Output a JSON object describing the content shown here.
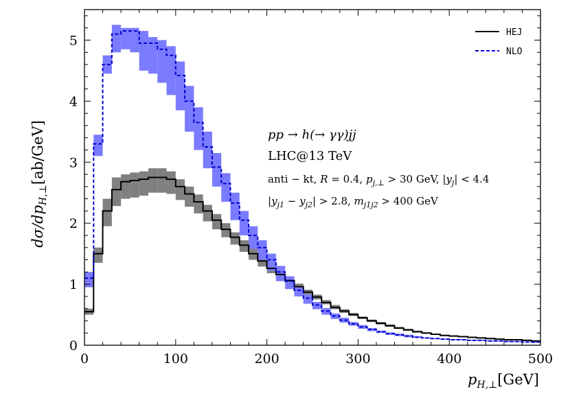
{
  "chart_data": {
    "type": "step",
    "xlabel": "p_{H,⊥}[GeV]",
    "ylabel": "dσ/dp_{H,⊥}[ab/GeV]",
    "xlim": [
      0,
      500
    ],
    "ylim": [
      0,
      5.5
    ],
    "x_ticks": [
      0,
      100,
      200,
      300,
      400,
      500
    ],
    "y_ticks": [
      0,
      1,
      2,
      3,
      4,
      5
    ],
    "x_tick_labels": [
      "0",
      "100",
      "200",
      "300",
      "400",
      "500"
    ],
    "y_tick_labels": [
      "0",
      "1",
      "2",
      "3",
      "4",
      "5"
    ],
    "bin_edges": [
      0,
      10,
      20,
      30,
      40,
      50,
      60,
      70,
      80,
      90,
      100,
      110,
      120,
      130,
      140,
      150,
      160,
      170,
      180,
      190,
      200,
      210,
      220,
      230,
      240,
      250,
      260,
      270,
      280,
      290,
      300,
      310,
      320,
      330,
      340,
      350,
      360,
      370,
      380,
      390,
      400,
      410,
      420,
      430,
      440,
      450,
      460,
      470,
      480,
      490,
      500
    ],
    "series": [
      {
        "name": "HEJ",
        "color": "#000000",
        "band_color": "#808080",
        "linestyle": "solid",
        "values": [
          0.55,
          1.5,
          2.2,
          2.55,
          2.68,
          2.7,
          2.72,
          2.75,
          2.75,
          2.72,
          2.6,
          2.48,
          2.35,
          2.2,
          2.05,
          1.9,
          1.77,
          1.64,
          1.5,
          1.38,
          1.26,
          1.16,
          1.06,
          0.96,
          0.87,
          0.79,
          0.7,
          0.62,
          0.56,
          0.5,
          0.45,
          0.4,
          0.36,
          0.32,
          0.28,
          0.25,
          0.22,
          0.2,
          0.18,
          0.16,
          0.15,
          0.14,
          0.13,
          0.12,
          0.11,
          0.1,
          0.09,
          0.09,
          0.08,
          0.07
        ],
        "band_low": [
          0.5,
          1.35,
          1.95,
          2.28,
          2.4,
          2.42,
          2.45,
          2.5,
          2.5,
          2.48,
          2.38,
          2.27,
          2.16,
          2.03,
          1.9,
          1.77,
          1.65,
          1.53,
          1.4,
          1.29,
          1.18,
          1.09,
          1.0,
          0.91,
          0.83,
          0.75,
          0.67,
          0.59,
          0.53,
          0.48,
          0.43,
          0.38,
          0.34,
          0.3,
          0.27,
          0.24,
          0.21,
          0.19,
          0.17,
          0.15,
          0.14,
          0.13,
          0.12,
          0.11,
          0.1,
          0.09,
          0.08,
          0.08,
          0.07,
          0.06
        ],
        "band_high": [
          0.6,
          1.6,
          2.4,
          2.75,
          2.8,
          2.83,
          2.85,
          2.9,
          2.9,
          2.85,
          2.72,
          2.6,
          2.47,
          2.3,
          2.15,
          2.0,
          1.85,
          1.72,
          1.58,
          1.46,
          1.33,
          1.23,
          1.12,
          1.01,
          0.91,
          0.83,
          0.74,
          0.66,
          0.59,
          0.53,
          0.47,
          0.42,
          0.38,
          0.34,
          0.3,
          0.27,
          0.24,
          0.21,
          0.19,
          0.17,
          0.16,
          0.15,
          0.14,
          0.13,
          0.12,
          0.11,
          0.1,
          0.1,
          0.09,
          0.08
        ]
      },
      {
        "name": "NLO",
        "color": "#0000cc",
        "band_color": "#7b7bff",
        "linestyle": "dashed",
        "values": [
          1.1,
          3.3,
          4.6,
          5.1,
          5.15,
          5.15,
          4.95,
          4.95,
          4.85,
          4.75,
          4.42,
          4.0,
          3.65,
          3.25,
          2.92,
          2.65,
          2.33,
          2.05,
          1.8,
          1.6,
          1.4,
          1.2,
          1.05,
          0.9,
          0.77,
          0.66,
          0.56,
          0.48,
          0.41,
          0.35,
          0.3,
          0.26,
          0.22,
          0.19,
          0.17,
          0.15,
          0.13,
          0.12,
          0.11,
          0.1,
          0.09,
          0.09,
          0.08,
          0.08,
          0.07,
          0.07,
          0.06,
          0.06,
          0.05,
          0.05
        ],
        "band_low": [
          0.95,
          3.1,
          4.45,
          4.8,
          4.85,
          4.8,
          4.5,
          4.45,
          4.3,
          4.1,
          3.85,
          3.5,
          3.2,
          2.9,
          2.6,
          2.35,
          2.05,
          1.8,
          1.58,
          1.4,
          1.22,
          1.05,
          0.92,
          0.8,
          0.68,
          0.59,
          0.5,
          0.43,
          0.37,
          0.32,
          0.27,
          0.23,
          0.2,
          0.17,
          0.15,
          0.13,
          0.12,
          0.11,
          0.1,
          0.09,
          0.08,
          0.08,
          0.07,
          0.07,
          0.06,
          0.06,
          0.05,
          0.05,
          0.05,
          0.04
        ],
        "band_high": [
          1.2,
          3.45,
          4.75,
          5.25,
          5.2,
          5.2,
          5.15,
          5.05,
          5.0,
          4.9,
          4.65,
          4.25,
          3.9,
          3.5,
          3.15,
          2.82,
          2.5,
          2.2,
          1.95,
          1.72,
          1.5,
          1.3,
          1.13,
          0.97,
          0.83,
          0.71,
          0.61,
          0.52,
          0.45,
          0.38,
          0.33,
          0.28,
          0.24,
          0.21,
          0.19,
          0.17,
          0.15,
          0.13,
          0.12,
          0.11,
          0.1,
          0.1,
          0.09,
          0.09,
          0.08,
          0.08,
          0.07,
          0.07,
          0.06,
          0.06
        ]
      }
    ],
    "legend": [
      "HEJ",
      "NLO"
    ],
    "legend_position": "top-right",
    "annotations": [
      "pp → h(→ γγ)jj",
      "LHC@13 TeV",
      "anti − kt, R = 0.4, p_{j,⊥} > 30 GeV, |y_j| < 4.4",
      "|y_{j1} − y_{j2}| > 2.8, m_{j1j2} > 400 GeV"
    ]
  }
}
